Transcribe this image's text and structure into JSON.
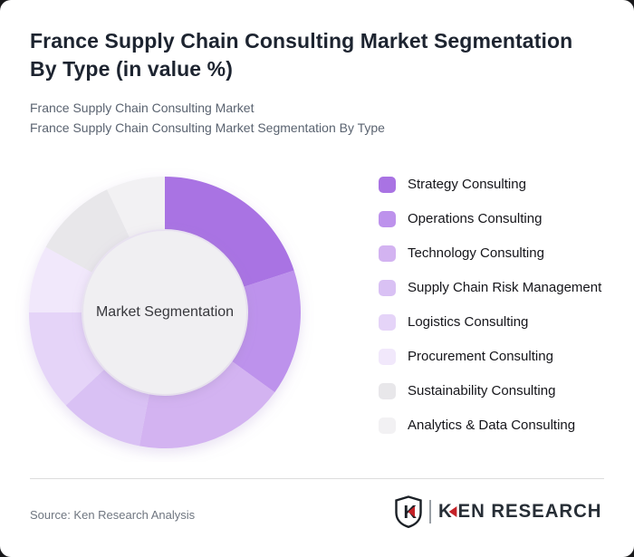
{
  "card": {
    "title": "France Supply Chain Consulting Market Segmentation By Type (in value %)",
    "subtitle_line1": "France Supply Chain Consulting Market",
    "subtitle_line2": "France Supply Chain Consulting Market Segmentation By Type"
  },
  "chart_data": {
    "type": "pie",
    "donut": true,
    "unit": "%",
    "title": "France Supply Chain Consulting Market Segmentation By Type (in value %)",
    "center_label": "Market Segmentation",
    "center_circle_color": "#f0eff2",
    "start_angle_deg": 0,
    "direction": "clockwise",
    "legend_position": "right",
    "segments": [
      {
        "label": "Strategy Consulting",
        "value": 20,
        "color": "#a973e3"
      },
      {
        "label": "Operations Consulting",
        "value": 15,
        "color": "#bd92ec"
      },
      {
        "label": "Technology Consulting",
        "value": 18,
        "color": "#d3b3f1"
      },
      {
        "label": "Supply Chain Risk Management",
        "value": 10,
        "color": "#d9c1f4"
      },
      {
        "label": "Logistics Consulting",
        "value": 12,
        "color": "#e5d4f8"
      },
      {
        "label": "Procurement Consulting",
        "value": 8,
        "color": "#f1e8fb"
      },
      {
        "label": "Sustainability Consulting",
        "value": 10,
        "color": "#e8e7ea"
      },
      {
        "label": "Analytics & Data Consulting",
        "value": 7,
        "color": "#f2f1f3"
      }
    ]
  },
  "footer": {
    "source": "Source: Ken Research Analysis",
    "logo_k": "K",
    "logo_rest": "EN RESEARCH",
    "logo_accent": "#c42127",
    "logo_text_color": "#272e36"
  }
}
